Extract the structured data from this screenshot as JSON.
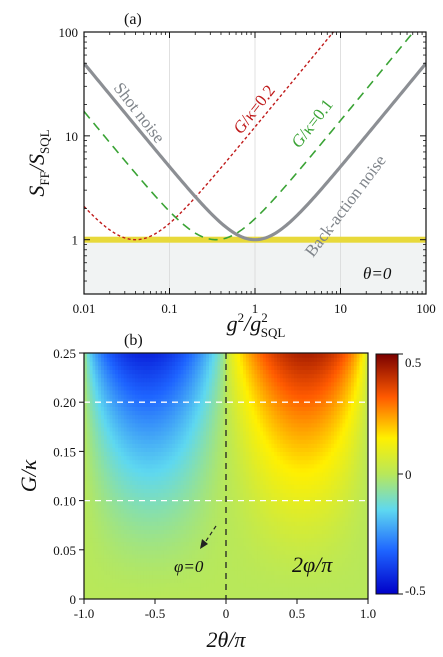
{
  "chart_data": [
    {
      "panel": "(a)",
      "type": "line",
      "xscale": "log",
      "yscale": "log",
      "xlim": [
        0.01,
        100
      ],
      "ylim": [
        0.3,
        100
      ],
      "xlabel_main": "g",
      "xlabel_sup": "2",
      "xlabel_den": "/g",
      "xlabel_den_sup": "2",
      "xlabel_den_sub": "SQL",
      "ylabel_main": "S",
      "ylabel_sub1": "FF",
      "ylabel_den": "/S",
      "ylabel_sub2": "SQL",
      "x_ticks": [
        0.01,
        0.1,
        1,
        10,
        100
      ],
      "x_tick_labels": [
        "0.01",
        "0.1",
        "1",
        "10",
        "100"
      ],
      "y_ticks": [
        1,
        10,
        100
      ],
      "y_tick_labels": [
        "1",
        "10",
        "100"
      ],
      "sql_level": 1,
      "series": [
        {
          "key": "sql",
          "name": "Shot noise / Back-action noise",
          "color": "#8c8f94",
          "dash": "solid",
          "G_over_kappa": 0,
          "points": [
            [
              0.01,
              50.0
            ],
            [
              0.1,
              5.05
            ],
            [
              1,
              1.0
            ],
            [
              10,
              5.05
            ],
            [
              100,
              50.0
            ]
          ]
        },
        {
          "key": "g01",
          "name": "G/κ=0.1",
          "color": "#3aa335",
          "dash": "long",
          "G_over_kappa": 0.1,
          "points": [
            [
              0.01,
              18.0
            ],
            [
              0.1,
              1.9
            ],
            [
              0.35,
              1.0
            ],
            [
              1,
              1.4
            ],
            [
              10,
              13.8
            ],
            [
              100,
              138
            ]
          ]
        },
        {
          "key": "g02",
          "name": "G/κ=0.2",
          "color": "#c01b1b",
          "dash": "short",
          "G_over_kappa": 0.2,
          "points": [
            [
              0.01,
              2.1
            ],
            [
              0.04,
              1.0
            ],
            [
              0.1,
              1.8
            ],
            [
              1,
              16.6
            ],
            [
              10,
              166
            ]
          ]
        }
      ],
      "annotations": {
        "shot_noise": "Shot noise",
        "back_action": "Back-action noise",
        "g01_label_G": "G",
        "g01_label_rest": "/κ=0.1",
        "g02_label_G": "G",
        "g02_label_rest": "/κ=0.2",
        "theta_label": "θ=0"
      },
      "colors": {
        "sql_band": "#e8d93a",
        "below_sql_fill": "#f1f3f3"
      }
    },
    {
      "panel": "(b)",
      "type": "heatmap",
      "quantity": "2φ/π",
      "xlabel": "2θ/π",
      "ylabel_G": "G",
      "ylabel_rest": "/κ",
      "xlim": [
        -1.0,
        1.0
      ],
      "ylim": [
        0,
        0.25
      ],
      "x_tick_labels": [
        "-1.0",
        "-0.5",
        "0",
        "0.5",
        "1.0"
      ],
      "x_ticks": [
        -1.0,
        -0.5,
        0,
        0.5,
        1.0
      ],
      "y_tick_labels": [
        "0",
        "0.05",
        "0.10",
        "0.15",
        "0.20",
        "0.25"
      ],
      "y_ticks": [
        0,
        0.05,
        0.1,
        0.15,
        0.2,
        0.25
      ],
      "colorbar_ticks": [
        0.5,
        0,
        -0.5
      ],
      "colorbar_tick_labels": [
        "0.5",
        "0",
        "-0.5"
      ],
      "clim": [
        -0.5,
        0.5
      ],
      "reference_lines_G": [
        0.1,
        0.2
      ],
      "vertical_reference_x": 0,
      "annotations": {
        "phi_zero": "φ=0",
        "quantity_label": "2φ/π"
      },
      "extremes": {
        "max_value": 0.5,
        "max_at": [
          0.9,
          0.25
        ],
        "min_value": -0.5,
        "min_at": [
          -0.9,
          0.25
        ]
      }
    }
  ]
}
